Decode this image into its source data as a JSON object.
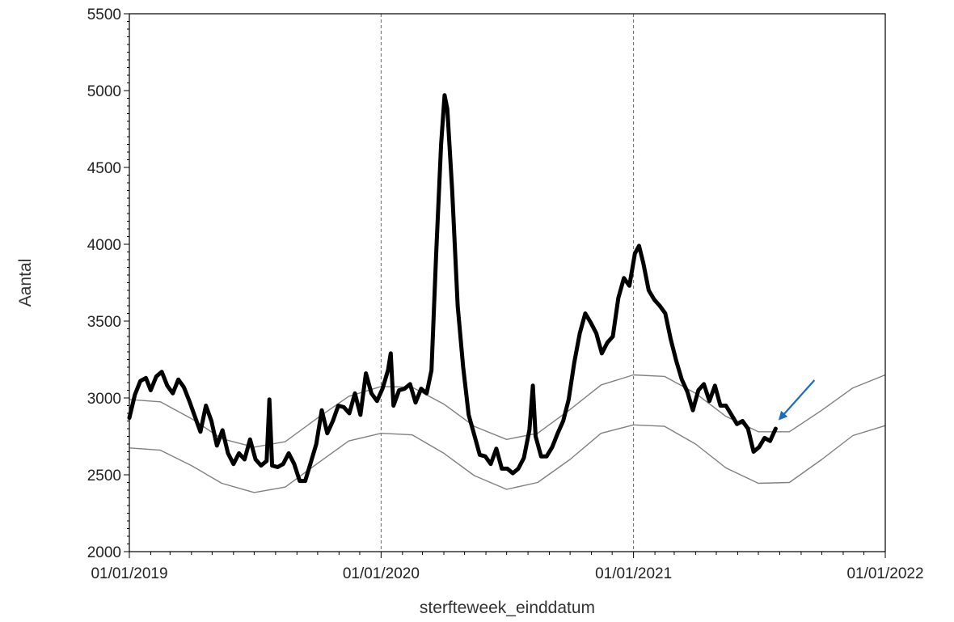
{
  "chart_data": {
    "type": "line",
    "xlabel": "sterfteweek_einddatum",
    "ylabel": "Aantal",
    "xlim": [
      "2019-01-01",
      "2022-01-01"
    ],
    "ylim": [
      2000,
      5500
    ],
    "x_ticks": [
      "01/01/2019",
      "01/01/2020",
      "01/01/2021",
      "01/01/2022"
    ],
    "y_ticks": [
      2000,
      2500,
      3000,
      3500,
      4000,
      4500,
      5000,
      5500
    ],
    "vertical_reference_lines": [
      "2020-01-01",
      "2021-01-01",
      "2022-01-01"
    ],
    "grid": false,
    "legend": "none",
    "colors": {
      "observed": "#000000",
      "band": "#808080",
      "reference_line": "#666666",
      "arrow": "#1f6db3"
    },
    "series": [
      {
        "values": [
          [
            "2019-01-01",
            2870
          ],
          [
            "2019-01-09",
            3020
          ],
          [
            "2019-01-17",
            3110
          ],
          [
            "2019-01-25",
            3130
          ],
          [
            "2019-02-01",
            3050
          ],
          [
            "2019-02-09",
            3140
          ],
          [
            "2019-02-17",
            3170
          ],
          [
            "2019-02-25",
            3080
          ],
          [
            "2019-03-05",
            3030
          ],
          [
            "2019-03-13",
            3120
          ],
          [
            "2019-03-21",
            3070
          ],
          [
            "2019-03-29",
            2980
          ],
          [
            "2019-04-06",
            2880
          ],
          [
            "2019-04-14",
            2780
          ],
          [
            "2019-04-22",
            2950
          ],
          [
            "2019-04-30",
            2850
          ],
          [
            "2019-05-08",
            2690
          ],
          [
            "2019-05-16",
            2790
          ],
          [
            "2019-05-24",
            2640
          ],
          [
            "2019-06-01",
            2570
          ],
          [
            "2019-06-09",
            2640
          ],
          [
            "2019-06-17",
            2600
          ],
          [
            "2019-06-25",
            2730
          ],
          [
            "2019-07-03",
            2600
          ],
          [
            "2019-07-11",
            2560
          ],
          [
            "2019-07-19",
            2590
          ],
          [
            "2019-07-23",
            2990
          ],
          [
            "2019-07-27",
            2560
          ],
          [
            "2019-08-04",
            2550
          ],
          [
            "2019-08-12",
            2570
          ],
          [
            "2019-08-20",
            2640
          ],
          [
            "2019-08-28",
            2570
          ],
          [
            "2019-09-05",
            2460
          ],
          [
            "2019-09-13",
            2460
          ],
          [
            "2019-09-21",
            2580
          ],
          [
            "2019-09-29",
            2700
          ],
          [
            "2019-10-07",
            2920
          ],
          [
            "2019-10-15",
            2770
          ],
          [
            "2019-10-23",
            2850
          ],
          [
            "2019-10-31",
            2950
          ],
          [
            "2019-11-08",
            2940
          ],
          [
            "2019-11-16",
            2900
          ],
          [
            "2019-11-24",
            3030
          ],
          [
            "2019-12-02",
            2890
          ],
          [
            "2019-12-10",
            3160
          ],
          [
            "2019-12-18",
            3030
          ],
          [
            "2019-12-26",
            2980
          ],
          [
            "2020-01-03",
            3060
          ],
          [
            "2020-01-11",
            3180
          ],
          [
            "2020-01-15",
            3290
          ],
          [
            "2020-01-19",
            2950
          ],
          [
            "2020-01-27",
            3050
          ],
          [
            "2020-02-04",
            3060
          ],
          [
            "2020-02-12",
            3090
          ],
          [
            "2020-02-20",
            2970
          ],
          [
            "2020-02-28",
            3060
          ],
          [
            "2020-03-07",
            3030
          ],
          [
            "2020-03-14",
            3180
          ],
          [
            "2020-03-21",
            3950
          ],
          [
            "2020-03-28",
            4650
          ],
          [
            "2020-04-02",
            4970
          ],
          [
            "2020-04-06",
            4880
          ],
          [
            "2020-04-13",
            4350
          ],
          [
            "2020-04-21",
            3600
          ],
          [
            "2020-04-29",
            3200
          ],
          [
            "2020-05-07",
            2890
          ],
          [
            "2020-05-15",
            2760
          ],
          [
            "2020-05-23",
            2630
          ],
          [
            "2020-05-31",
            2620
          ],
          [
            "2020-06-08",
            2570
          ],
          [
            "2020-06-16",
            2670
          ],
          [
            "2020-06-24",
            2540
          ],
          [
            "2020-07-02",
            2540
          ],
          [
            "2020-07-10",
            2510
          ],
          [
            "2020-07-18",
            2540
          ],
          [
            "2020-07-26",
            2610
          ],
          [
            "2020-08-03",
            2790
          ],
          [
            "2020-08-08",
            3080
          ],
          [
            "2020-08-12",
            2750
          ],
          [
            "2020-08-20",
            2620
          ],
          [
            "2020-08-28",
            2620
          ],
          [
            "2020-09-05",
            2680
          ],
          [
            "2020-09-13",
            2770
          ],
          [
            "2020-09-21",
            2850
          ],
          [
            "2020-09-29",
            2990
          ],
          [
            "2020-10-07",
            3230
          ],
          [
            "2020-10-15",
            3420
          ],
          [
            "2020-10-23",
            3550
          ],
          [
            "2020-10-31",
            3490
          ],
          [
            "2020-11-08",
            3420
          ],
          [
            "2020-11-16",
            3290
          ],
          [
            "2020-11-24",
            3360
          ],
          [
            "2020-12-02",
            3400
          ],
          [
            "2020-12-10",
            3650
          ],
          [
            "2020-12-18",
            3780
          ],
          [
            "2020-12-26",
            3730
          ],
          [
            "2021-01-03",
            3940
          ],
          [
            "2021-01-09",
            3990
          ],
          [
            "2021-01-15",
            3880
          ],
          [
            "2021-01-23",
            3700
          ],
          [
            "2021-01-31",
            3640
          ],
          [
            "2021-02-08",
            3600
          ],
          [
            "2021-02-16",
            3550
          ],
          [
            "2021-02-24",
            3380
          ],
          [
            "2021-03-04",
            3240
          ],
          [
            "2021-03-12",
            3120
          ],
          [
            "2021-03-20",
            3040
          ],
          [
            "2021-03-28",
            2920
          ],
          [
            "2021-04-05",
            3050
          ],
          [
            "2021-04-13",
            3090
          ],
          [
            "2021-04-21",
            2980
          ],
          [
            "2021-04-29",
            3080
          ],
          [
            "2021-05-07",
            2950
          ],
          [
            "2021-05-15",
            2950
          ],
          [
            "2021-05-23",
            2890
          ],
          [
            "2021-05-31",
            2830
          ],
          [
            "2021-06-08",
            2850
          ],
          [
            "2021-06-16",
            2800
          ],
          [
            "2021-06-24",
            2650
          ],
          [
            "2021-07-02",
            2680
          ],
          [
            "2021-07-10",
            2740
          ],
          [
            "2021-07-18",
            2720
          ],
          [
            "2021-07-26",
            2800
          ]
        ]
      },
      {
        "values": [
          [
            "2019-01-01",
            2990
          ],
          [
            "2019-02-15",
            2975
          ],
          [
            "2019-04-01",
            2865
          ],
          [
            "2019-05-15",
            2735
          ],
          [
            "2019-07-01",
            2680
          ],
          [
            "2019-08-15",
            2715
          ],
          [
            "2019-10-01",
            2870
          ],
          [
            "2019-11-15",
            3010
          ],
          [
            "2020-01-01",
            3075
          ],
          [
            "2020-02-15",
            3070
          ],
          [
            "2020-04-01",
            2960
          ],
          [
            "2020-05-15",
            2815
          ],
          [
            "2020-07-01",
            2730
          ],
          [
            "2020-08-15",
            2770
          ],
          [
            "2020-10-01",
            2925
          ],
          [
            "2020-11-15",
            3085
          ],
          [
            "2021-01-01",
            3150
          ],
          [
            "2021-02-15",
            3140
          ],
          [
            "2021-04-01",
            3030
          ],
          [
            "2021-05-15",
            2880
          ],
          [
            "2021-07-01",
            2780
          ],
          [
            "2021-08-15",
            2780
          ],
          [
            "2021-10-01",
            2920
          ],
          [
            "2021-11-15",
            3065
          ],
          [
            "2022-01-01",
            3150
          ]
        ]
      },
      {
        "values": [
          [
            "2019-01-01",
            2675
          ],
          [
            "2019-02-15",
            2660
          ],
          [
            "2019-04-01",
            2560
          ],
          [
            "2019-05-15",
            2445
          ],
          [
            "2019-07-01",
            2385
          ],
          [
            "2019-08-15",
            2420
          ],
          [
            "2019-10-01",
            2575
          ],
          [
            "2019-11-15",
            2720
          ],
          [
            "2020-01-01",
            2770
          ],
          [
            "2020-02-15",
            2760
          ],
          [
            "2020-04-01",
            2640
          ],
          [
            "2020-05-15",
            2495
          ],
          [
            "2020-07-01",
            2405
          ],
          [
            "2020-08-15",
            2450
          ],
          [
            "2020-10-01",
            2600
          ],
          [
            "2020-11-15",
            2770
          ],
          [
            "2021-01-01",
            2825
          ],
          [
            "2021-02-15",
            2815
          ],
          [
            "2021-04-01",
            2700
          ],
          [
            "2021-05-15",
            2545
          ],
          [
            "2021-07-01",
            2445
          ],
          [
            "2021-08-15",
            2450
          ],
          [
            "2021-10-01",
            2600
          ],
          [
            "2021-11-15",
            2755
          ],
          [
            "2022-01-01",
            2820
          ]
        ]
      }
    ],
    "annotations": [
      {
        "type": "arrow",
        "points_to": [
          "2021-07-26",
          2800
        ]
      }
    ]
  }
}
